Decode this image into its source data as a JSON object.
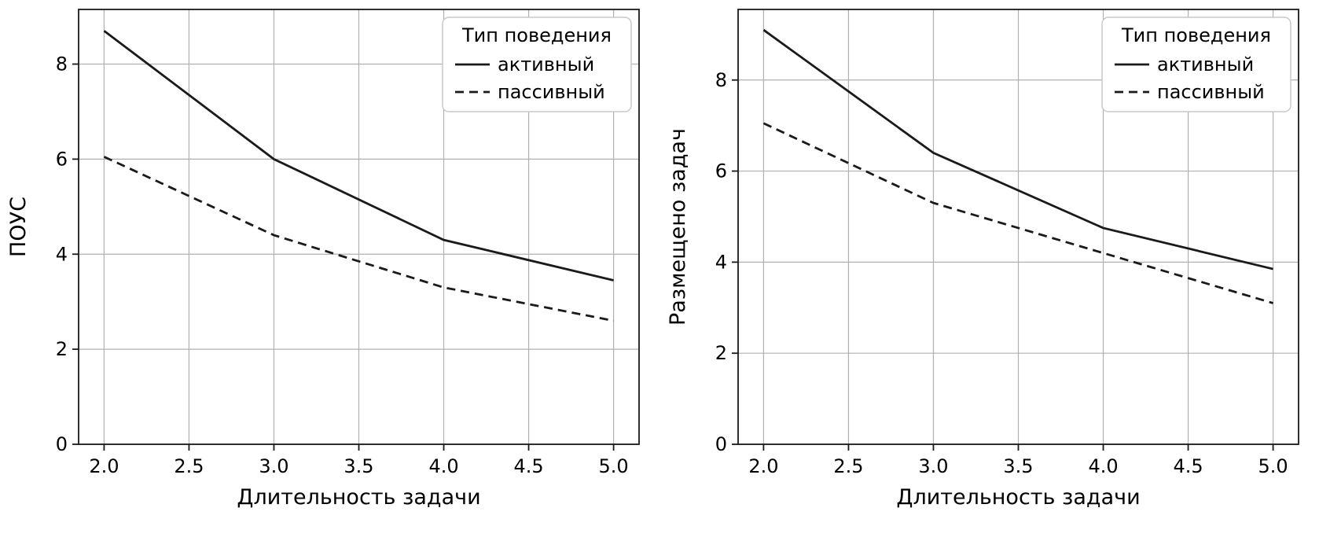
{
  "palette": {
    "background": "#ffffff",
    "line": "#1a1a1a",
    "grid": "#b0b0b0",
    "spine": "#1a1a1a",
    "text": "#000000",
    "legend_border": "#c9c9c9",
    "legend_bg": "#ffffff"
  },
  "chart_data": [
    {
      "type": "line",
      "title": "",
      "xlabel": "Длительность задачи",
      "ylabel": "ПОУС",
      "x": [
        2.0,
        3.0,
        4.0,
        5.0
      ],
      "series": [
        {
          "name": "активный",
          "style": "solid",
          "values": [
            8.7,
            6.0,
            4.3,
            3.45
          ]
        },
        {
          "name": "пассивный",
          "style": "dashed",
          "values": [
            6.05,
            4.4,
            3.3,
            2.6
          ]
        }
      ],
      "xlim": [
        1.85,
        5.15
      ],
      "ylim": [
        0,
        9.15
      ],
      "xticks": [
        2.0,
        2.5,
        3.0,
        3.5,
        4.0,
        4.5,
        5.0
      ],
      "xtick_labels": [
        "2.0",
        "2.5",
        "3.0",
        "3.5",
        "4.0",
        "4.5",
        "5.0"
      ],
      "yticks": [
        0,
        2,
        4,
        6,
        8
      ],
      "ytick_labels": [
        "0",
        "2",
        "4",
        "6",
        "8"
      ],
      "grid": true,
      "legend": {
        "title": "Тип поведения",
        "position": "upper right"
      }
    },
    {
      "type": "line",
      "title": "",
      "xlabel": "Длительность задачи",
      "ylabel": "Размещено задач",
      "x": [
        2.0,
        3.0,
        4.0,
        5.0
      ],
      "series": [
        {
          "name": "активный",
          "style": "solid",
          "values": [
            9.1,
            6.4,
            4.75,
            3.85
          ]
        },
        {
          "name": "пассивный",
          "style": "dashed",
          "values": [
            7.05,
            5.3,
            4.2,
            3.1
          ]
        }
      ],
      "xlim": [
        1.85,
        5.15
      ],
      "ylim": [
        0,
        9.55
      ],
      "xticks": [
        2.0,
        2.5,
        3.0,
        3.5,
        4.0,
        4.5,
        5.0
      ],
      "xtick_labels": [
        "2.0",
        "2.5",
        "3.0",
        "3.5",
        "4.0",
        "4.5",
        "5.0"
      ],
      "yticks": [
        0,
        2,
        4,
        6,
        8
      ],
      "ytick_labels": [
        "0",
        "2",
        "4",
        "6",
        "8"
      ],
      "grid": true,
      "legend": {
        "title": "Тип поведения",
        "position": "upper right"
      }
    }
  ]
}
